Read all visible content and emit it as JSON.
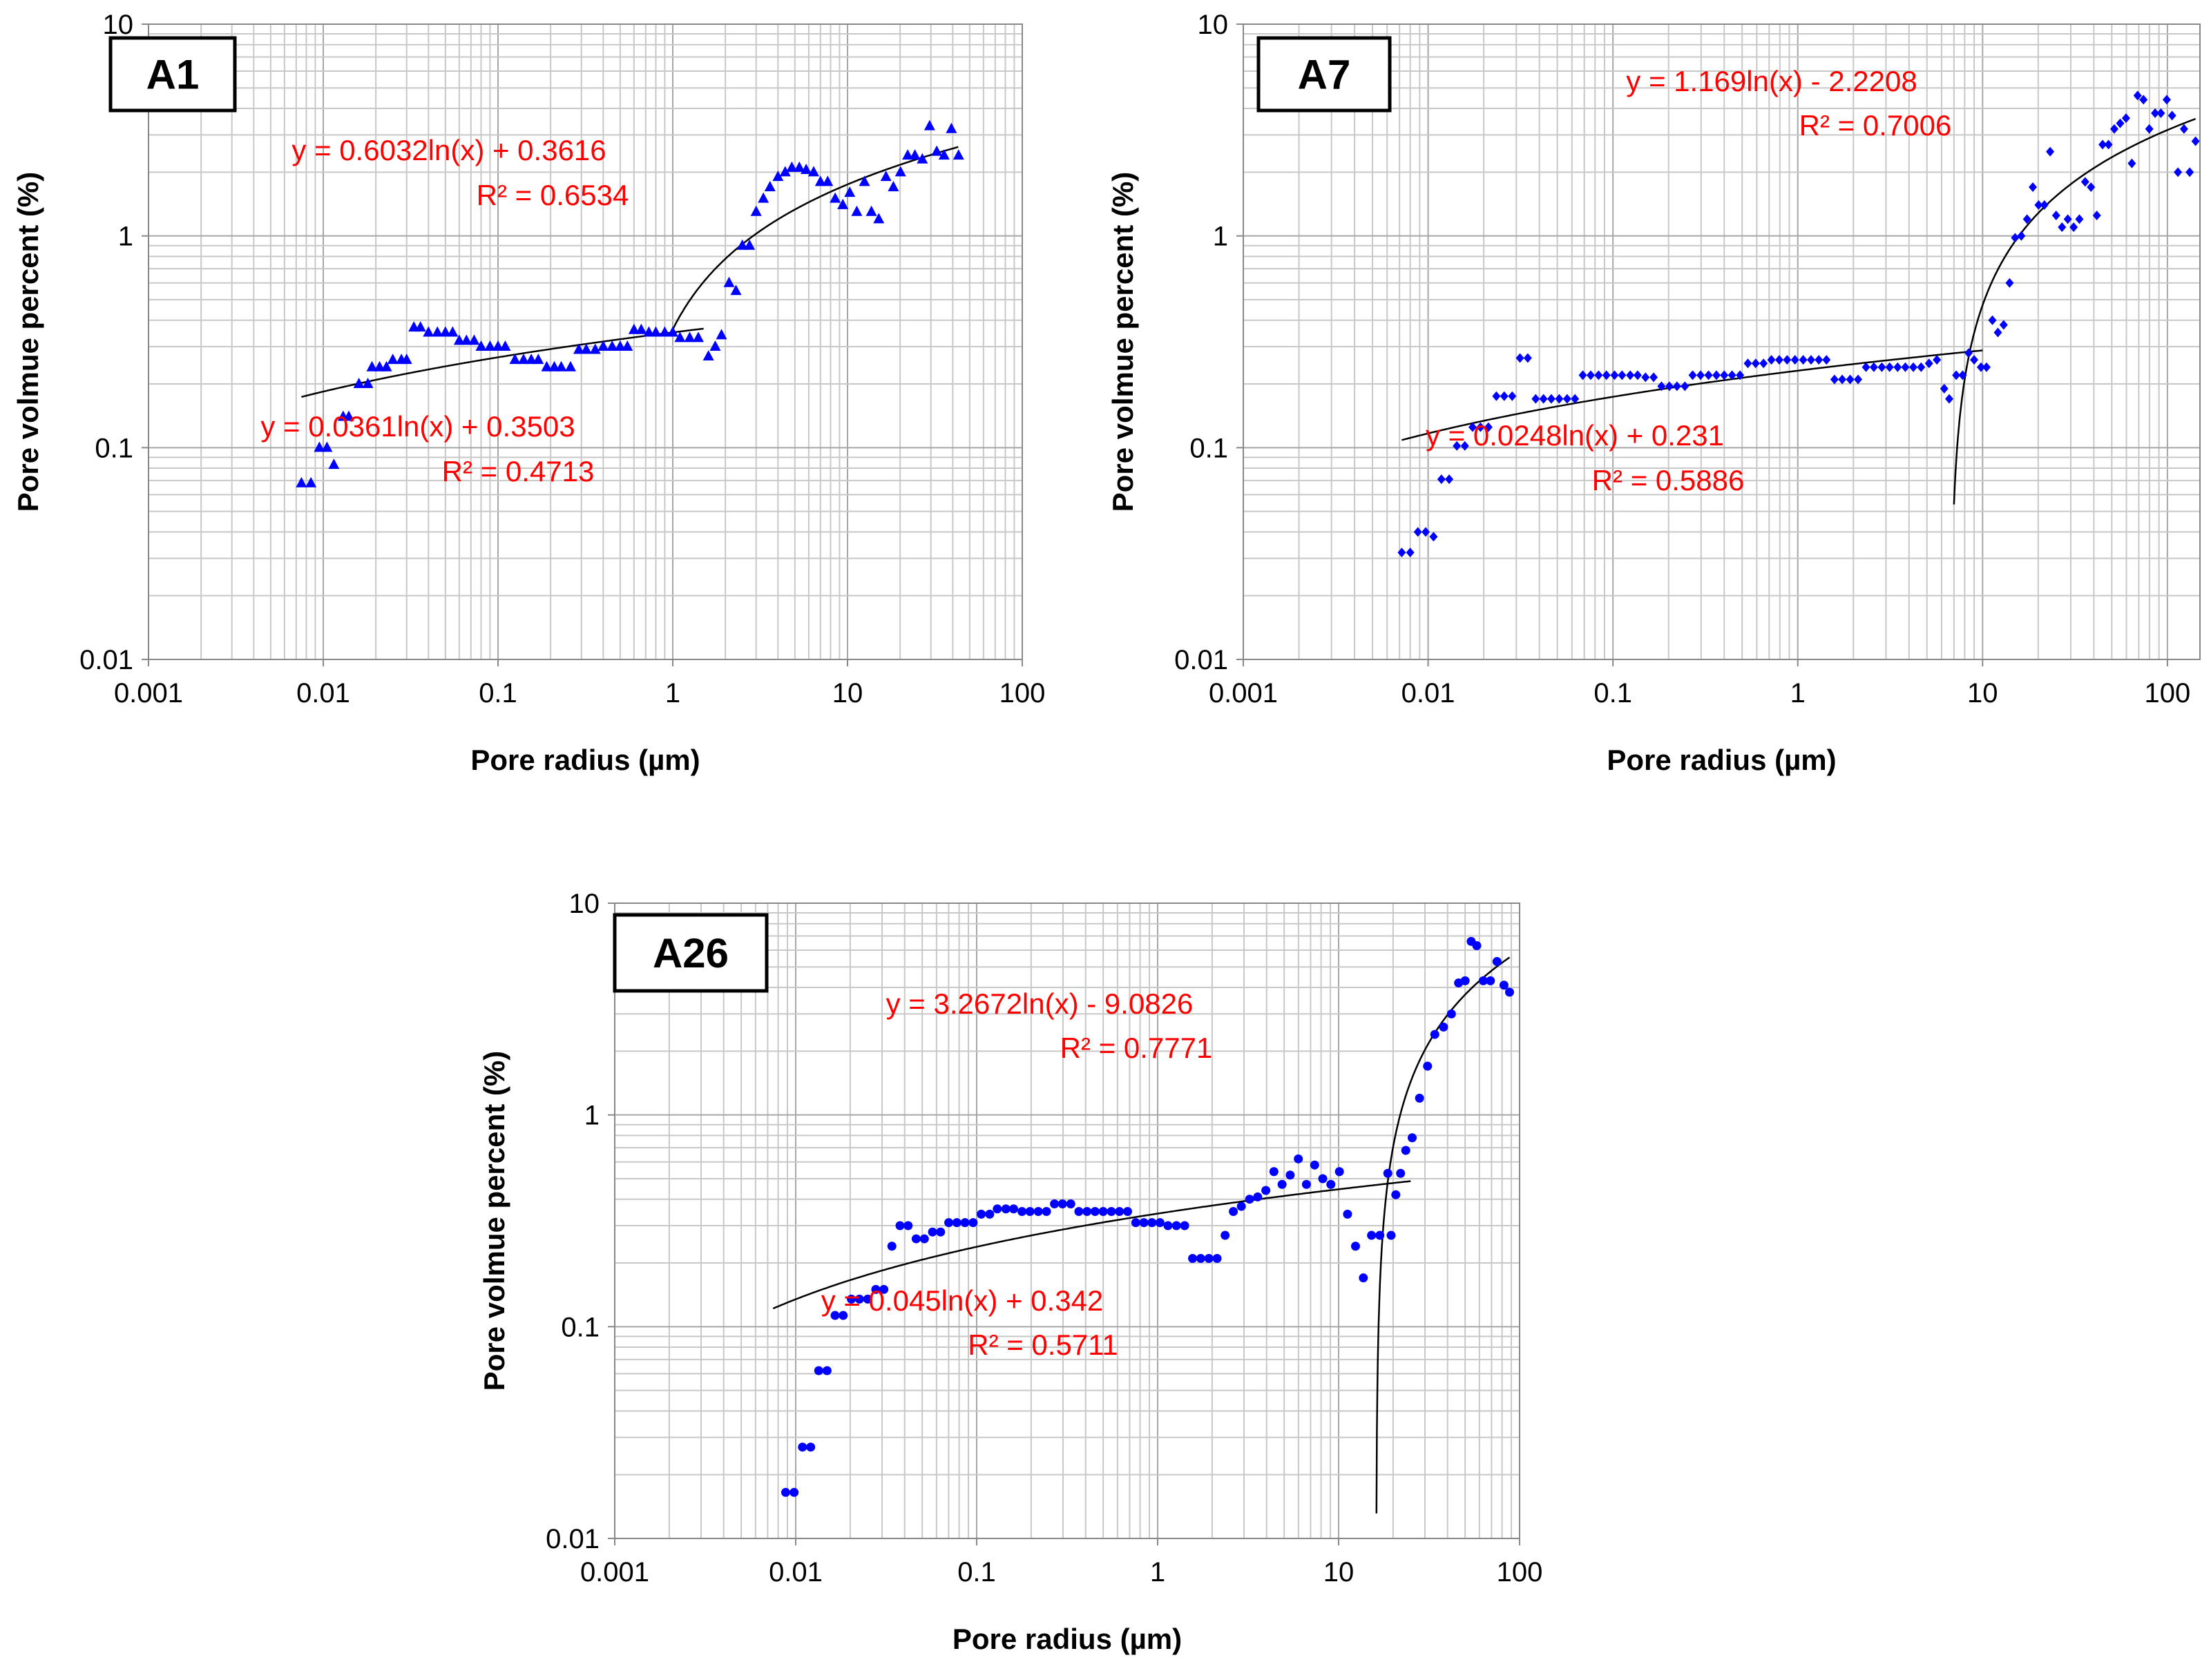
{
  "colors": {
    "marker": "#0000ff",
    "equation": "#ff0000",
    "fit_line": "#000000",
    "grid": "#b0b0b0"
  },
  "chart_data": [
    {
      "id": "A1",
      "type": "scatter",
      "marker": "triangle",
      "title": "A1",
      "xlabel": "Pore radius (µm)",
      "ylabel": "Pore volmue percent (%)",
      "xscale": "log",
      "yscale": "log",
      "xlim": [
        0.001,
        100
      ],
      "ylim": [
        0.01,
        10
      ],
      "xticks": [
        "0.001",
        "0.01",
        "0.1",
        "1",
        "10",
        "100"
      ],
      "yticks": [
        "0.01",
        "0.1",
        "1",
        "10"
      ],
      "grid": true,
      "points": [
        [
          0.0075,
          0.068
        ],
        [
          0.0085,
          0.068
        ],
        [
          0.0095,
          0.1
        ],
        [
          0.0105,
          0.1
        ],
        [
          0.0115,
          0.083
        ],
        [
          0.013,
          0.14
        ],
        [
          0.014,
          0.14
        ],
        [
          0.016,
          0.2
        ],
        [
          0.018,
          0.2
        ],
        [
          0.019,
          0.24
        ],
        [
          0.021,
          0.24
        ],
        [
          0.023,
          0.24
        ],
        [
          0.025,
          0.26
        ],
        [
          0.028,
          0.26
        ],
        [
          0.03,
          0.26
        ],
        [
          0.033,
          0.37
        ],
        [
          0.036,
          0.37
        ],
        [
          0.04,
          0.35
        ],
        [
          0.045,
          0.35
        ],
        [
          0.05,
          0.35
        ],
        [
          0.055,
          0.35
        ],
        [
          0.06,
          0.32
        ],
        [
          0.066,
          0.32
        ],
        [
          0.073,
          0.32
        ],
        [
          0.08,
          0.3
        ],
        [
          0.09,
          0.3
        ],
        [
          0.1,
          0.3
        ],
        [
          0.11,
          0.3
        ],
        [
          0.125,
          0.26
        ],
        [
          0.14,
          0.26
        ],
        [
          0.155,
          0.26
        ],
        [
          0.17,
          0.26
        ],
        [
          0.19,
          0.24
        ],
        [
          0.21,
          0.24
        ],
        [
          0.23,
          0.24
        ],
        [
          0.26,
          0.24
        ],
        [
          0.29,
          0.29
        ],
        [
          0.32,
          0.29
        ],
        [
          0.36,
          0.29
        ],
        [
          0.4,
          0.3
        ],
        [
          0.45,
          0.3
        ],
        [
          0.5,
          0.3
        ],
        [
          0.55,
          0.3
        ],
        [
          0.6,
          0.36
        ],
        [
          0.66,
          0.36
        ],
        [
          0.73,
          0.35
        ],
        [
          0.8,
          0.35
        ],
        [
          0.9,
          0.35
        ],
        [
          1.0,
          0.35
        ],
        [
          1.1,
          0.33
        ],
        [
          1.25,
          0.33
        ],
        [
          1.4,
          0.33
        ],
        [
          1.6,
          0.27
        ],
        [
          1.75,
          0.3
        ],
        [
          1.9,
          0.34
        ],
        [
          2.1,
          0.6
        ],
        [
          2.3,
          0.55
        ],
        [
          2.5,
          0.9
        ],
        [
          2.75,
          0.9
        ],
        [
          3.0,
          1.3
        ],
        [
          3.3,
          1.5
        ],
        [
          3.6,
          1.7
        ],
        [
          4.0,
          1.9
        ],
        [
          4.4,
          2.0
        ],
        [
          4.8,
          2.1
        ],
        [
          5.3,
          2.1
        ],
        [
          5.8,
          2.05
        ],
        [
          6.4,
          2.0
        ],
        [
          7.0,
          1.8
        ],
        [
          7.7,
          1.8
        ],
        [
          8.5,
          1.5
        ],
        [
          9.4,
          1.4
        ],
        [
          10.3,
          1.6
        ],
        [
          11.3,
          1.3
        ],
        [
          12.5,
          1.8
        ],
        [
          13.7,
          1.3
        ],
        [
          15.1,
          1.2
        ],
        [
          16.6,
          1.9
        ],
        [
          18.3,
          1.7
        ],
        [
          20.1,
          2.0
        ],
        [
          22.1,
          2.4
        ],
        [
          24.3,
          2.4
        ],
        [
          26.8,
          2.3
        ],
        [
          29.5,
          3.3
        ],
        [
          32.4,
          2.5
        ],
        [
          35.7,
          2.4
        ],
        [
          39.3,
          3.2
        ],
        [
          43.2,
          2.4
        ]
      ],
      "fits": [
        {
          "equation": "y = 0.6032ln(x) + 0.3616",
          "r2": "R² = 0.6534",
          "a": 0.6032,
          "b": 0.3616,
          "x_range": [
            1.0,
            43
          ]
        },
        {
          "equation": "y = 0.0361ln(x) + 0.3503",
          "r2": "R² = 0.4713",
          "a": 0.0361,
          "b": 0.3503,
          "x_range": [
            0.0075,
            1.5
          ]
        }
      ]
    },
    {
      "id": "A7",
      "type": "scatter",
      "marker": "diamond",
      "title": "A7",
      "xlabel": "Pore radius (µm)",
      "ylabel": "Pore volmue percent (%)",
      "xscale": "log",
      "yscale": "log",
      "xlim": [
        0.001,
        150
      ],
      "ylim": [
        0.01,
        10
      ],
      "xticks": [
        "0.001",
        "0.01",
        "0.1",
        "1",
        "10",
        "100"
      ],
      "yticks": [
        "0.01",
        "0.1",
        "1",
        "10"
      ],
      "grid": true,
      "points": [
        [
          0.0072,
          0.032
        ],
        [
          0.008,
          0.032
        ],
        [
          0.0088,
          0.04
        ],
        [
          0.0097,
          0.04
        ],
        [
          0.0107,
          0.038
        ],
        [
          0.0118,
          0.071
        ],
        [
          0.013,
          0.071
        ],
        [
          0.0143,
          0.102
        ],
        [
          0.0158,
          0.102
        ],
        [
          0.0174,
          0.125
        ],
        [
          0.0192,
          0.125
        ],
        [
          0.0212,
          0.125
        ],
        [
          0.0234,
          0.175
        ],
        [
          0.0258,
          0.175
        ],
        [
          0.0285,
          0.175
        ],
        [
          0.0314,
          0.265
        ],
        [
          0.0346,
          0.265
        ],
        [
          0.0382,
          0.17
        ],
        [
          0.0421,
          0.17
        ],
        [
          0.0464,
          0.17
        ],
        [
          0.0512,
          0.17
        ],
        [
          0.0565,
          0.17
        ],
        [
          0.0623,
          0.17
        ],
        [
          0.0687,
          0.22
        ],
        [
          0.0758,
          0.22
        ],
        [
          0.0836,
          0.22
        ],
        [
          0.0922,
          0.22
        ],
        [
          0.102,
          0.22
        ],
        [
          0.112,
          0.22
        ],
        [
          0.124,
          0.22
        ],
        [
          0.136,
          0.22
        ],
        [
          0.15,
          0.215
        ],
        [
          0.166,
          0.215
        ],
        [
          0.183,
          0.195
        ],
        [
          0.202,
          0.195
        ],
        [
          0.222,
          0.195
        ],
        [
          0.245,
          0.195
        ],
        [
          0.27,
          0.22
        ],
        [
          0.298,
          0.22
        ],
        [
          0.329,
          0.22
        ],
        [
          0.363,
          0.22
        ],
        [
          0.4,
          0.22
        ],
        [
          0.441,
          0.22
        ],
        [
          0.487,
          0.22
        ],
        [
          0.537,
          0.25
        ],
        [
          0.592,
          0.25
        ],
        [
          0.653,
          0.25
        ],
        [
          0.72,
          0.26
        ],
        [
          0.794,
          0.26
        ],
        [
          0.876,
          0.26
        ],
        [
          0.966,
          0.26
        ],
        [
          1.07,
          0.26
        ],
        [
          1.18,
          0.26
        ],
        [
          1.3,
          0.26
        ],
        [
          1.43,
          0.26
        ],
        [
          1.58,
          0.21
        ],
        [
          1.74,
          0.21
        ],
        [
          1.92,
          0.21
        ],
        [
          2.12,
          0.21
        ],
        [
          2.34,
          0.24
        ],
        [
          2.58,
          0.24
        ],
        [
          2.85,
          0.24
        ],
        [
          3.14,
          0.24
        ],
        [
          3.47,
          0.24
        ],
        [
          3.82,
          0.24
        ],
        [
          4.22,
          0.24
        ],
        [
          4.65,
          0.24
        ],
        [
          5.13,
          0.25
        ],
        [
          5.66,
          0.26
        ],
        [
          6.2,
          0.19
        ],
        [
          6.6,
          0.17
        ],
        [
          7.2,
          0.22
        ],
        [
          7.8,
          0.22
        ],
        [
          8.4,
          0.28
        ],
        [
          9.0,
          0.26
        ],
        [
          9.8,
          0.24
        ],
        [
          10.5,
          0.24
        ],
        [
          11.3,
          0.4
        ],
        [
          12.1,
          0.35
        ],
        [
          13.0,
          0.38
        ],
        [
          14.0,
          0.6
        ],
        [
          15.0,
          0.98
        ],
        [
          16.2,
          1.0
        ],
        [
          17.4,
          1.2
        ],
        [
          18.7,
          1.7
        ],
        [
          20.1,
          1.4
        ],
        [
          21.6,
          1.4
        ],
        [
          23.2,
          2.5
        ],
        [
          25.0,
          1.25
        ],
        [
          26.9,
          1.1
        ],
        [
          28.9,
          1.2
        ],
        [
          31.1,
          1.1
        ],
        [
          33.4,
          1.2
        ],
        [
          35.9,
          1.8
        ],
        [
          38.6,
          1.7
        ],
        [
          41.5,
          1.25
        ],
        [
          44.6,
          2.7
        ],
        [
          48.0,
          2.7
        ],
        [
          51.6,
          3.2
        ],
        [
          55.5,
          3.4
        ],
        [
          59.7,
          3.6
        ],
        [
          64.2,
          2.2
        ],
        [
          69.0,
          4.6
        ],
        [
          74.2,
          4.4
        ],
        [
          79.8,
          3.2
        ],
        [
          85.8,
          3.8
        ],
        [
          92.2,
          3.8
        ],
        [
          99.2,
          4.4
        ],
        [
          106,
          3.7
        ],
        [
          114,
          2.0
        ],
        [
          123,
          3.2
        ],
        [
          132,
          2.0
        ],
        [
          142,
          2.8
        ]
      ],
      "fits": [
        {
          "equation": "y = 1.169ln(x) - 2.2208",
          "r2": "R² = 0.7006",
          "a": 1.169,
          "b": -2.2208,
          "x_range": [
            7.0,
            142
          ]
        },
        {
          "equation": "y = 0.0248ln(x) + 0.231",
          "r2": "R² = 0.5886",
          "a": 0.0248,
          "b": 0.231,
          "x_range": [
            0.0072,
            10
          ]
        }
      ]
    },
    {
      "id": "A26",
      "type": "scatter",
      "marker": "circle",
      "title": "A26",
      "xlabel": "Pore radius (µm)",
      "ylabel": "Pore volmue percent (%)",
      "xscale": "log",
      "yscale": "log",
      "xlim": [
        0.001,
        100
      ],
      "ylim": [
        0.01,
        10
      ],
      "xticks": [
        "0.001",
        "0.01",
        "0.1",
        "1",
        "10",
        "100"
      ],
      "yticks": [
        "0.01",
        "0.1",
        "1",
        "10"
      ],
      "grid": true,
      "points": [
        [
          0.0088,
          0.0165
        ],
        [
          0.0098,
          0.0165
        ],
        [
          0.0109,
          0.027
        ],
        [
          0.0121,
          0.027
        ],
        [
          0.0134,
          0.062
        ],
        [
          0.0149,
          0.062
        ],
        [
          0.0165,
          0.113
        ],
        [
          0.0183,
          0.113
        ],
        [
          0.0203,
          0.135
        ],
        [
          0.0225,
          0.135
        ],
        [
          0.025,
          0.135
        ],
        [
          0.0277,
          0.15
        ],
        [
          0.0307,
          0.15
        ],
        [
          0.034,
          0.24
        ],
        [
          0.0377,
          0.3
        ],
        [
          0.0418,
          0.3
        ],
        [
          0.0463,
          0.26
        ],
        [
          0.0514,
          0.26
        ],
        [
          0.057,
          0.28
        ],
        [
          0.0632,
          0.28
        ],
        [
          0.0701,
          0.31
        ],
        [
          0.0777,
          0.31
        ],
        [
          0.0862,
          0.31
        ],
        [
          0.0956,
          0.31
        ],
        [
          0.106,
          0.34
        ],
        [
          0.118,
          0.34
        ],
        [
          0.13,
          0.36
        ],
        [
          0.145,
          0.36
        ],
        [
          0.16,
          0.36
        ],
        [
          0.178,
          0.35
        ],
        [
          0.197,
          0.35
        ],
        [
          0.219,
          0.35
        ],
        [
          0.243,
          0.35
        ],
        [
          0.269,
          0.38
        ],
        [
          0.298,
          0.38
        ],
        [
          0.331,
          0.38
        ],
        [
          0.367,
          0.35
        ],
        [
          0.407,
          0.35
        ],
        [
          0.451,
          0.35
        ],
        [
          0.5,
          0.35
        ],
        [
          0.555,
          0.35
        ],
        [
          0.615,
          0.35
        ],
        [
          0.682,
          0.35
        ],
        [
          0.757,
          0.31
        ],
        [
          0.839,
          0.31
        ],
        [
          0.93,
          0.31
        ],
        [
          1.03,
          0.31
        ],
        [
          1.14,
          0.3
        ],
        [
          1.27,
          0.3
        ],
        [
          1.41,
          0.3
        ],
        [
          1.56,
          0.21
        ],
        [
          1.73,
          0.21
        ],
        [
          1.92,
          0.21
        ],
        [
          2.13,
          0.21
        ],
        [
          2.36,
          0.27
        ],
        [
          2.62,
          0.35
        ],
        [
          2.9,
          0.37
        ],
        [
          3.22,
          0.4
        ],
        [
          3.57,
          0.41
        ],
        [
          3.96,
          0.44
        ],
        [
          4.39,
          0.54
        ],
        [
          4.87,
          0.47
        ],
        [
          5.4,
          0.52
        ],
        [
          5.99,
          0.62
        ],
        [
          6.64,
          0.47
        ],
        [
          7.37,
          0.58
        ],
        [
          8.17,
          0.5
        ],
        [
          9.06,
          0.47
        ],
        [
          10.1,
          0.54
        ],
        [
          11.2,
          0.34
        ],
        [
          12.4,
          0.24
        ],
        [
          13.7,
          0.17
        ],
        [
          15.2,
          0.27
        ],
        [
          16.9,
          0.27
        ],
        [
          18.7,
          0.53
        ],
        [
          19.5,
          0.27
        ],
        [
          20.7,
          0.42
        ],
        [
          22.0,
          0.53
        ],
        [
          23.5,
          0.68
        ],
        [
          25.5,
          0.78
        ],
        [
          28,
          1.2
        ],
        [
          31,
          1.7
        ],
        [
          34,
          2.4
        ],
        [
          38,
          2.6
        ],
        [
          42,
          3.0
        ],
        [
          46,
          4.2
        ],
        [
          50,
          4.3
        ],
        [
          54,
          6.6
        ],
        [
          58,
          6.3
        ],
        [
          63,
          4.3
        ],
        [
          69,
          4.3
        ],
        [
          75,
          5.3
        ],
        [
          82,
          4.1
        ],
        [
          88,
          3.8
        ]
      ],
      "fits": [
        {
          "equation": "y = 3.2672ln(x) - 9.0826",
          "r2": "R² = 0.7771",
          "a": 3.2672,
          "b": -9.0826,
          "x_range": [
            16.0,
            88
          ]
        },
        {
          "equation": "y = 0.045ln(x) + 0.342",
          "r2": "R² = 0.5711",
          "a": 0.045,
          "b": 0.342,
          "x_range": [
            0.0075,
            25
          ]
        }
      ]
    }
  ]
}
